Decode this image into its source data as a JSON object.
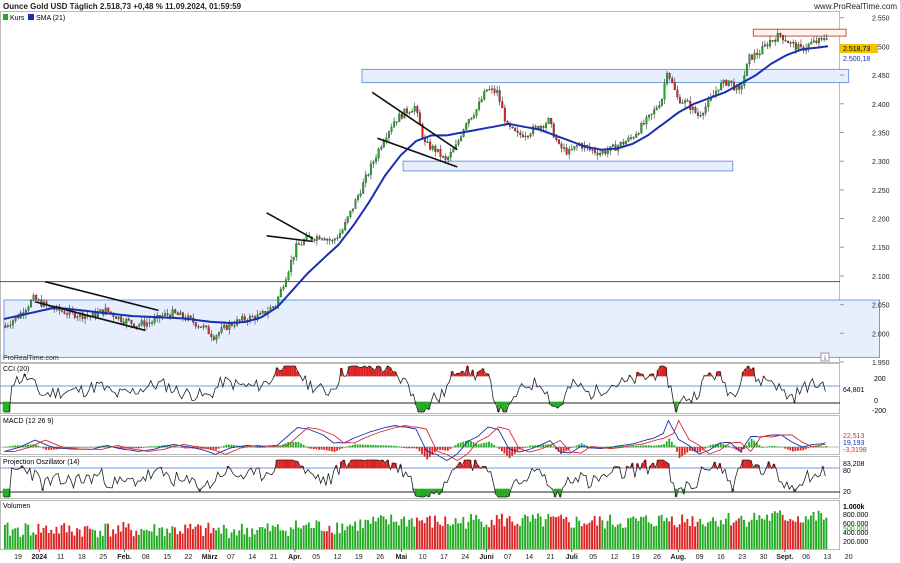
{
  "header": {
    "title": "Ounce Gold USD Täglich 2.518,73 +0,48 % 11.09.2024, 01:59:59",
    "brand": "www.ProRealTime.com"
  },
  "watermark": "ProRealTime.com",
  "colors": {
    "up": "#22aa22",
    "down": "#dd2222",
    "sma": "#1a2fb0",
    "zone_fill": "#e7efff",
    "zone_stroke": "#6f9be0",
    "label_yellow": "#f2c200"
  },
  "price_panel": {
    "legend": [
      {
        "label": "Kurs",
        "icon": "candle-icon"
      },
      {
        "label": "SMA (21)",
        "icon": "square-icon"
      }
    ],
    "ticks": [
      "1.950",
      "2.000",
      "2.050",
      "2.100",
      "2.150",
      "2.200",
      "2.250",
      "2.300",
      "2.350",
      "2.400",
      "2.450",
      "2.500",
      "2.550"
    ],
    "labels": [
      "2.518,73",
      "2.500,18"
    ],
    "small_box": "i"
  },
  "cci_panel": {
    "title": "CCI (20)",
    "ticks": [
      "200",
      "0",
      "-200"
    ],
    "value_label": "64,801"
  },
  "macd_panel": {
    "title": "MACD (12 26 9)",
    "value_labels": [
      "22,513",
      "19,193",
      "-3,3198"
    ]
  },
  "proj_panel": {
    "title": "Projection Oszillator (14)",
    "ticks": [
      "80",
      "20"
    ],
    "value_label": "83,208"
  },
  "volume_panel": {
    "title": "Volumen",
    "ticks": [
      "1.000k",
      "800.000",
      "600.000",
      "400.000",
      "200.000"
    ],
    "value_label": "500.000"
  },
  "x_axis": {
    "labels": [
      {
        "t": "19",
        "bold": false
      },
      {
        "t": "2024",
        "bold": true
      },
      {
        "t": "11",
        "bold": false
      },
      {
        "t": "18",
        "bold": false
      },
      {
        "t": "25",
        "bold": false
      },
      {
        "t": "Feb.",
        "bold": true
      },
      {
        "t": "08",
        "bold": false
      },
      {
        "t": "15",
        "bold": false
      },
      {
        "t": "22",
        "bold": false
      },
      {
        "t": "März",
        "bold": true
      },
      {
        "t": "07",
        "bold": false
      },
      {
        "t": "14",
        "bold": false
      },
      {
        "t": "21",
        "bold": false
      },
      {
        "t": "Apr.",
        "bold": true
      },
      {
        "t": "05",
        "bold": false
      },
      {
        "t": "12",
        "bold": false
      },
      {
        "t": "19",
        "bold": false
      },
      {
        "t": "26",
        "bold": false
      },
      {
        "t": "Mai",
        "bold": true
      },
      {
        "t": "10",
        "bold": false
      },
      {
        "t": "17",
        "bold": false
      },
      {
        "t": "24",
        "bold": false
      },
      {
        "t": "Juni",
        "bold": true
      },
      {
        "t": "07",
        "bold": false
      },
      {
        "t": "14",
        "bold": false
      },
      {
        "t": "21",
        "bold": false
      },
      {
        "t": "Juli",
        "bold": true
      },
      {
        "t": "05",
        "bold": false
      },
      {
        "t": "12",
        "bold": false
      },
      {
        "t": "19",
        "bold": false
      },
      {
        "t": "26",
        "bold": false
      },
      {
        "t": "Aug.",
        "bold": true
      },
      {
        "t": "09",
        "bold": false
      },
      {
        "t": "16",
        "bold": false
      },
      {
        "t": "23",
        "bold": false
      },
      {
        "t": "30",
        "bold": false
      },
      {
        "t": "Sept.",
        "bold": true
      },
      {
        "t": "06",
        "bold": false
      },
      {
        "t": "13",
        "bold": false
      },
      {
        "t": "20",
        "bold": false
      }
    ]
  },
  "chart_data": {
    "type": "candlestick",
    "instrument": "Ounce Gold USD",
    "interval": "Täglich",
    "ylim": [
      1950,
      2560
    ],
    "price_path": [
      [
        0,
        2010
      ],
      [
        6,
        2030
      ],
      [
        12,
        2060
      ],
      [
        18,
        2045
      ],
      [
        26,
        2035
      ],
      [
        34,
        2030
      ],
      [
        40,
        2040
      ],
      [
        46,
        2025
      ],
      [
        52,
        2015
      ],
      [
        58,
        2020
      ],
      [
        62,
        2030
      ],
      [
        66,
        2035
      ],
      [
        72,
        2025
      ],
      [
        78,
        2010
      ],
      [
        82,
        1995
      ],
      [
        88,
        2015
      ],
      [
        94,
        2025
      ],
      [
        100,
        2030
      ],
      [
        106,
        2050
      ],
      [
        110,
        2100
      ],
      [
        114,
        2150
      ],
      [
        118,
        2165
      ],
      [
        124,
        2170
      ],
      [
        128,
        2160
      ],
      [
        132,
        2180
      ],
      [
        136,
        2220
      ],
      [
        140,
        2260
      ],
      [
        144,
        2300
      ],
      [
        148,
        2340
      ],
      [
        152,
        2370
      ],
      [
        156,
        2385
      ],
      [
        160,
        2395
      ],
      [
        164,
        2330
      ],
      [
        168,
        2320
      ],
      [
        172,
        2300
      ],
      [
        176,
        2325
      ],
      [
        180,
        2370
      ],
      [
        184,
        2390
      ],
      [
        188,
        2425
      ],
      [
        192,
        2420
      ],
      [
        196,
        2360
      ],
      [
        200,
        2345
      ],
      [
        204,
        2350
      ],
      [
        208,
        2360
      ],
      [
        212,
        2370
      ],
      [
        216,
        2325
      ],
      [
        220,
        2315
      ],
      [
        224,
        2330
      ],
      [
        228,
        2320
      ],
      [
        232,
        2315
      ],
      [
        236,
        2320
      ],
      [
        240,
        2330
      ],
      [
        244,
        2340
      ],
      [
        248,
        2360
      ],
      [
        252,
        2380
      ],
      [
        256,
        2410
      ],
      [
        258,
        2460
      ],
      [
        262,
        2410
      ],
      [
        266,
        2400
      ],
      [
        270,
        2380
      ],
      [
        274,
        2400
      ],
      [
        278,
        2430
      ],
      [
        282,
        2440
      ],
      [
        286,
        2420
      ],
      [
        290,
        2480
      ],
      [
        294,
        2490
      ],
      [
        298,
        2510
      ],
      [
        302,
        2520
      ],
      [
        306,
        2505
      ],
      [
        310,
        2495
      ],
      [
        314,
        2505
      ],
      [
        318,
        2510
      ],
      [
        320,
        2518.73
      ]
    ],
    "sma_path": [
      [
        0,
        2025
      ],
      [
        10,
        2035
      ],
      [
        20,
        2045
      ],
      [
        30,
        2040
      ],
      [
        40,
        2035
      ],
      [
        50,
        2030
      ],
      [
        60,
        2028
      ],
      [
        70,
        2026
      ],
      [
        80,
        2020
      ],
      [
        88,
        2018
      ],
      [
        94,
        2020
      ],
      [
        100,
        2028
      ],
      [
        106,
        2045
      ],
      [
        112,
        2075
      ],
      [
        118,
        2105
      ],
      [
        124,
        2130
      ],
      [
        130,
        2155
      ],
      [
        136,
        2190
      ],
      [
        142,
        2230
      ],
      [
        148,
        2275
      ],
      [
        154,
        2310
      ],
      [
        160,
        2335
      ],
      [
        166,
        2345
      ],
      [
        172,
        2345
      ],
      [
        178,
        2350
      ],
      [
        184,
        2355
      ],
      [
        190,
        2360
      ],
      [
        196,
        2365
      ],
      [
        202,
        2360
      ],
      [
        208,
        2355
      ],
      [
        214,
        2345
      ],
      [
        220,
        2335
      ],
      [
        226,
        2325
      ],
      [
        232,
        2320
      ],
      [
        238,
        2322
      ],
      [
        244,
        2330
      ],
      [
        250,
        2345
      ],
      [
        256,
        2365
      ],
      [
        262,
        2385
      ],
      [
        268,
        2400
      ],
      [
        274,
        2410
      ],
      [
        280,
        2420
      ],
      [
        286,
        2435
      ],
      [
        292,
        2450
      ],
      [
        298,
        2470
      ],
      [
        304,
        2485
      ],
      [
        310,
        2495
      ],
      [
        316,
        2498
      ],
      [
        320,
        2500.18
      ]
    ],
    "candles_count": 320,
    "last_close": 2518.73,
    "change_pct": 0.48,
    "sma21_last": 2500.18,
    "support_zones": [
      {
        "y1": 1958,
        "y2": 2058,
        "x1": 0,
        "x2": 340
      },
      {
        "y1": 2437,
        "y2": 2460,
        "x1": 139,
        "x2": 328
      },
      {
        "y1": 2283,
        "y2": 2300,
        "x1": 155,
        "x2": 283
      },
      {
        "y1": 2518,
        "y2": 2530,
        "x1": 291,
        "x2": 327
      }
    ],
    "hline": 2090,
    "trendlines": [
      {
        "p1": [
          16,
          2090
        ],
        "p2": [
          60,
          2040
        ]
      },
      {
        "p1": [
          12,
          2055
        ],
        "p2": [
          55,
          2005
        ]
      },
      {
        "p1": [
          143,
          2420
        ],
        "p2": [
          176,
          2320
        ]
      },
      {
        "p1": [
          145,
          2340
        ],
        "p2": [
          176,
          2290
        ]
      },
      {
        "p1": [
          102,
          2210
        ],
        "p2": [
          120,
          2165
        ]
      },
      {
        "p1": [
          102,
          2170
        ],
        "p2": [
          120,
          2160
        ]
      }
    ]
  }
}
